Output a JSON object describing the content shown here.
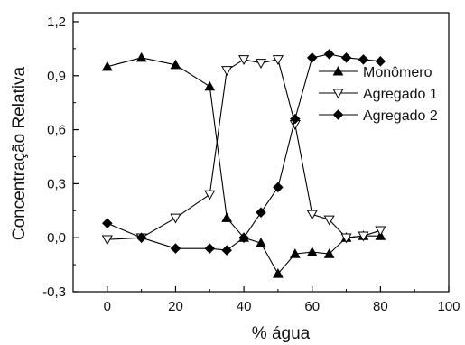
{
  "chart_data": {
    "type": "line",
    "xlabel": "% água",
    "ylabel": "Concentração Relativa",
    "xlim": [
      -10,
      100
    ],
    "ylim": [
      -0.3,
      1.25
    ],
    "xticks": [
      0,
      20,
      40,
      60,
      80,
      100
    ],
    "xtick_labels": [
      "0",
      "20",
      "40",
      "60",
      "80",
      "100"
    ],
    "yticks": [
      -0.3,
      0.0,
      0.3,
      0.6,
      0.9,
      1.2
    ],
    "ytick_labels": [
      "-0,3",
      "0,0",
      "0,3",
      "0,6",
      "0,9",
      "1,2"
    ],
    "grid": false,
    "legend_position": "right",
    "series": [
      {
        "name": "Monômero",
        "marker": "triangle-up-filled",
        "x": [
          0,
          10,
          20,
          30,
          35,
          40,
          45,
          50,
          55,
          60,
          65,
          70,
          75,
          80
        ],
        "y": [
          0.95,
          1.0,
          0.96,
          0.84,
          0.11,
          0.0,
          -0.03,
          -0.2,
          -0.09,
          -0.08,
          -0.09,
          0.0,
          0.01,
          0.01
        ]
      },
      {
        "name": "Agregado 1",
        "marker": "triangle-down-open",
        "x": [
          0,
          10,
          20,
          30,
          35,
          40,
          45,
          50,
          55,
          60,
          65,
          70,
          75,
          80
        ],
        "y": [
          -0.01,
          0.0,
          0.11,
          0.24,
          0.93,
          0.99,
          0.97,
          0.99,
          0.63,
          0.13,
          0.1,
          0.0,
          0.01,
          0.04
        ]
      },
      {
        "name": "Agregado 2",
        "marker": "diamond-filled",
        "x": [
          0,
          10,
          20,
          30,
          35,
          40,
          45,
          50,
          55,
          60,
          65,
          70,
          75,
          80
        ],
        "y": [
          0.08,
          0.0,
          -0.06,
          -0.06,
          -0.07,
          0.0,
          0.14,
          0.28,
          0.66,
          1.0,
          1.02,
          1.0,
          0.99,
          0.98
        ]
      }
    ]
  }
}
